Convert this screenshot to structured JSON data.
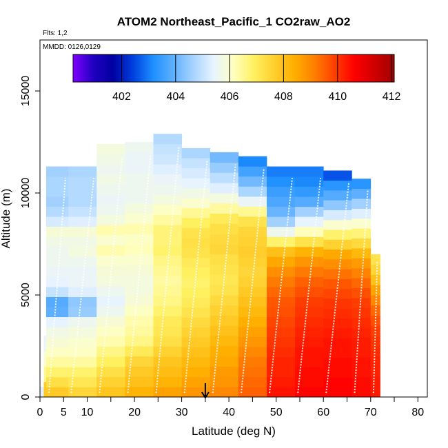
{
  "chart_data": {
    "type": "heatmap",
    "title": "ATOM2 Northeast_Pacific_1 CO2raw_AO2",
    "flights_note": "Flts: 1,2",
    "date_note": "MMDD: 0126,0129",
    "xlabel": "Latitude (deg N)",
    "ylabel": "Altitude (m)",
    "xlim": [
      0,
      82
    ],
    "ylim": [
      0,
      17500
    ],
    "x_ticks": [
      0,
      5,
      10,
      20,
      30,
      40,
      50,
      60,
      70,
      80
    ],
    "y_ticks": [
      0,
      5000,
      10000,
      15000
    ],
    "grid": false,
    "colorbar": {
      "placement": "top-inset",
      "range": [
        400.2,
        412.1
      ],
      "ticks": [
        402,
        404,
        406,
        408,
        410,
        412
      ],
      "colors": [
        "#8000ff",
        "#2000c0",
        "#0000a0",
        "#0040e0",
        "#1e90ff",
        "#60b0ff",
        "#a8d4ff",
        "#e8f4ff",
        "#ffffc0",
        "#fff060",
        "#ffd030",
        "#ffb000",
        "#ff8000",
        "#ff4000",
        "#ff0000",
        "#d00000",
        "#a00000"
      ]
    },
    "marker": {
      "latitude": 35,
      "symbol": "arrow"
    },
    "columns": [
      {
        "lat": [
          0,
          0.8
        ],
        "top": 500,
        "values": [
          405.3
        ]
      },
      {
        "lat": [
          0.8,
          1.3
        ],
        "top": 3000,
        "values": [
          407.8,
          406.5,
          406.0,
          405.5
        ]
      },
      {
        "lat": [
          1.3,
          6
        ],
        "top": 11300,
        "values": [
          407.8,
          407.3,
          406.8,
          406.4,
          406.1,
          405.9,
          405.7,
          405.4,
          403.9,
          403.8,
          405.0,
          405.4,
          405.5,
          405.6,
          405.6,
          405.7,
          405.9,
          405.2,
          404.8,
          404.6,
          404.7,
          404.7,
          404.6
        ]
      },
      {
        "lat": [
          6,
          12
        ],
        "top": 11300,
        "values": [
          407.5,
          407.1,
          406.8,
          406.4,
          406.1,
          406.0,
          405.8,
          405.6,
          404.5,
          404.4,
          405.3,
          405.5,
          405.5,
          405.6,
          405.8,
          405.7,
          405.9,
          405.3,
          405.0,
          404.8,
          404.8,
          404.8,
          404.7
        ]
      },
      {
        "lat": [
          12,
          18
        ],
        "top": 12400,
        "values": [
          407.9,
          407.6,
          407.3,
          406.9,
          406.6,
          406.3,
          406.1,
          405.9,
          405.6,
          405.4,
          405.6,
          405.8,
          405.9,
          406.0,
          406.3,
          406.0,
          406.3,
          405.8,
          405.6,
          405.5,
          405.6,
          405.7,
          405.6,
          405.7,
          405.8
        ]
      },
      {
        "lat": [
          18,
          24
        ],
        "top": 12500,
        "values": [
          408.3,
          408.0,
          407.8,
          407.5,
          407.0,
          406.6,
          406.4,
          406.3,
          406.1,
          405.9,
          405.8,
          405.8,
          405.9,
          406.0,
          406.2,
          406.1,
          406.3,
          406.0,
          405.8,
          405.6,
          405.6,
          405.6,
          405.5,
          405.5,
          405.6
        ]
      },
      {
        "lat": [
          24,
          30
        ],
        "top": 12900,
        "values": [
          408.6,
          408.3,
          408.1,
          407.9,
          407.6,
          407.3,
          407.1,
          407.0,
          406.8,
          406.6,
          406.5,
          406.4,
          406.5,
          406.6,
          406.8,
          406.7,
          406.7,
          406.4,
          406.1,
          405.8,
          405.6,
          405.5,
          405.3,
          405.1,
          405.0,
          404.8
        ]
      },
      {
        "lat": [
          30,
          36
        ],
        "top": 12200,
        "values": [
          408.8,
          408.6,
          408.4,
          408.2,
          408.0,
          407.8,
          407.6,
          407.4,
          407.2,
          407.0,
          406.9,
          406.8,
          406.9,
          407.0,
          407.2,
          407.3,
          407.2,
          406.9,
          406.5,
          406.0,
          405.7,
          405.4,
          405.2,
          405.0,
          404.7
        ]
      },
      {
        "lat": [
          36,
          42
        ],
        "top": 12000,
        "values": [
          409.0,
          408.8,
          408.7,
          408.5,
          408.4,
          408.2,
          408.0,
          407.8,
          407.6,
          407.4,
          407.2,
          407.1,
          407.2,
          407.3,
          407.5,
          407.4,
          407.3,
          407.0,
          406.4,
          405.8,
          405.3,
          404.9,
          404.5,
          404.1
        ]
      },
      {
        "lat": [
          42,
          48
        ],
        "top": 11800,
        "values": [
          409.5,
          409.4,
          409.3,
          409.2,
          409.0,
          408.8,
          408.6,
          408.4,
          408.2,
          408.0,
          407.8,
          407.6,
          407.5,
          407.6,
          407.7,
          407.6,
          407.5,
          407.2,
          406.5,
          405.5,
          404.7,
          404.1,
          403.6,
          403.1
        ]
      },
      {
        "lat": [
          48,
          54
        ],
        "top": 11300,
        "values": [
          410.4,
          410.3,
          410.2,
          410.2,
          410.1,
          410.0,
          409.9,
          409.8,
          409.7,
          409.6,
          409.4,
          409.2,
          408.9,
          408.5,
          408.0,
          406.8,
          405.6,
          404.6,
          404.0,
          403.7,
          403.5,
          403.2,
          403.0
        ]
      },
      {
        "lat": [
          54,
          60
        ],
        "top": 11300,
        "values": [
          410.6,
          410.5,
          410.5,
          410.4,
          410.4,
          410.3,
          410.2,
          410.1,
          410.0,
          409.9,
          409.7,
          409.5,
          409.2,
          408.8,
          408.3,
          407.2,
          406.2,
          405.4,
          404.6,
          403.8,
          403.4,
          403.1,
          403.0
        ]
      },
      {
        "lat": [
          60,
          66
        ],
        "top": 11100,
        "values": [
          410.6,
          410.6,
          410.5,
          410.5,
          410.4,
          410.4,
          410.3,
          410.2,
          410.1,
          410.0,
          409.8,
          409.6,
          409.3,
          408.9,
          408.5,
          407.6,
          406.8,
          406.0,
          405.2,
          404.4,
          403.8,
          403.3,
          402.6
        ]
      },
      {
        "lat": [
          66,
          70
        ],
        "top": 10700,
        "values": [
          410.5,
          410.5,
          410.4,
          410.4,
          410.3,
          410.3,
          410.2,
          410.1,
          410.0,
          409.9,
          409.7,
          409.4,
          409.1,
          408.7,
          408.2,
          407.4,
          406.7,
          406.0,
          405.3,
          404.6,
          403.9,
          403.3
        ]
      },
      {
        "lat": [
          70,
          72
        ],
        "top": 7000,
        "values": [
          410.3,
          410.3,
          410.2,
          410.2,
          410.1,
          410.0,
          409.9,
          409.7,
          409.4,
          409.0,
          408.6,
          408.0,
          407.5,
          407.2
        ]
      }
    ]
  }
}
